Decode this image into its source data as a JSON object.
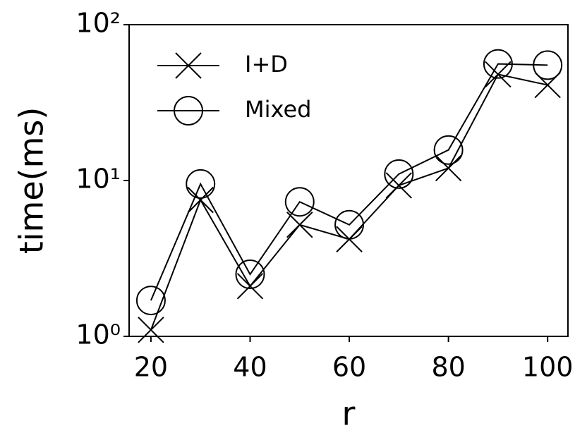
{
  "chart_data": {
    "type": "line",
    "x_label": "r",
    "y_label": "time(ms)",
    "x": [
      20,
      30,
      40,
      50,
      60,
      70,
      80,
      90,
      100
    ],
    "series": [
      {
        "name": "I+D",
        "color": "#000000",
        "marker": "x",
        "values": [
          1.1,
          7.5,
          2.1,
          5.2,
          4.2,
          9.3,
          12,
          48,
          41
        ]
      },
      {
        "name": "Mixed",
        "color": "#000000",
        "marker": "o",
        "values": [
          1.7,
          9.5,
          2.5,
          7.3,
          5.2,
          11,
          15.7,
          56,
          55
        ]
      }
    ],
    "xlim": [
      15.6,
      104.1
    ],
    "xticks": [
      20,
      40,
      60,
      80,
      100
    ],
    "ylim": [
      1,
      100
    ],
    "yscale": "log",
    "yticks": [
      {
        "value": 1,
        "label": "10⁰"
      },
      {
        "value": 10,
        "label": "10¹"
      },
      {
        "value": 100,
        "label": "10²"
      }
    ],
    "legend": "upper left"
  }
}
